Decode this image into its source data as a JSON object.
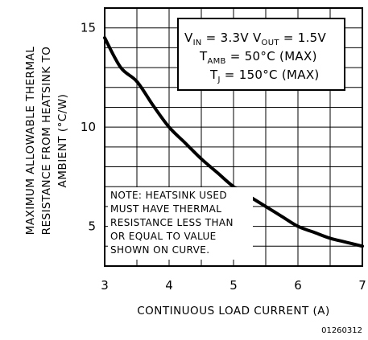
{
  "chart_data": {
    "type": "line",
    "title": "",
    "xlabel": "CONTINUOUS LOAD CURRENT (A)",
    "ylabel_lines": [
      "MAXIMUM ALLOWABLE THERMAL",
      "RESISTANCE FROM HEATSINK TO",
      "AMBIENT (°C/W)"
    ],
    "xlim": [
      3,
      7
    ],
    "ylim": [
      3,
      16
    ],
    "x_ticks": [
      {
        "value": 3,
        "label": "3"
      },
      {
        "value": 4,
        "label": "4"
      },
      {
        "value": 5,
        "label": "5"
      },
      {
        "value": 6,
        "label": "6"
      },
      {
        "value": 7,
        "label": "7"
      }
    ],
    "y_ticks": [
      {
        "value": 5,
        "label": "5"
      },
      {
        "value": 10,
        "label": "10"
      },
      {
        "value": 15,
        "label": "15"
      }
    ],
    "grid": true,
    "series": [
      {
        "x": [
          3.0,
          3.25,
          3.5,
          3.75,
          4.0,
          4.25,
          4.5,
          4.75,
          5.0,
          5.25,
          5.5,
          5.75,
          6.0,
          6.25,
          6.5,
          6.75,
          7.0
        ],
        "y": [
          14.5,
          13.0,
          12.3,
          11.1,
          10.0,
          9.2,
          8.4,
          7.7,
          7.0,
          6.5,
          6.0,
          5.5,
          5.0,
          4.7,
          4.4,
          4.2,
          4.0
        ]
      }
    ],
    "conditions": {
      "line1": {
        "vin_main": "V",
        "vin_sub": "IN",
        "vin_val": " = 3.3V ",
        "vout_main": "V",
        "vout_sub": "OUT",
        "vout_val": " = 1.5V"
      },
      "line2": {
        "main": "T",
        "sub": "AMB",
        "val": " = 50°C (MAX)"
      },
      "line3": {
        "main": "T",
        "sub": "J",
        "val": " = 150°C (MAX)"
      }
    },
    "note_lines": [
      "NOTE: HEATSINK USED",
      "MUST HAVE THERMAL",
      "RESISTANCE LESS THAN",
      "OR EQUAL TO VALUE",
      "SHOWN ON CURVE."
    ],
    "figure_id": "01260312"
  }
}
